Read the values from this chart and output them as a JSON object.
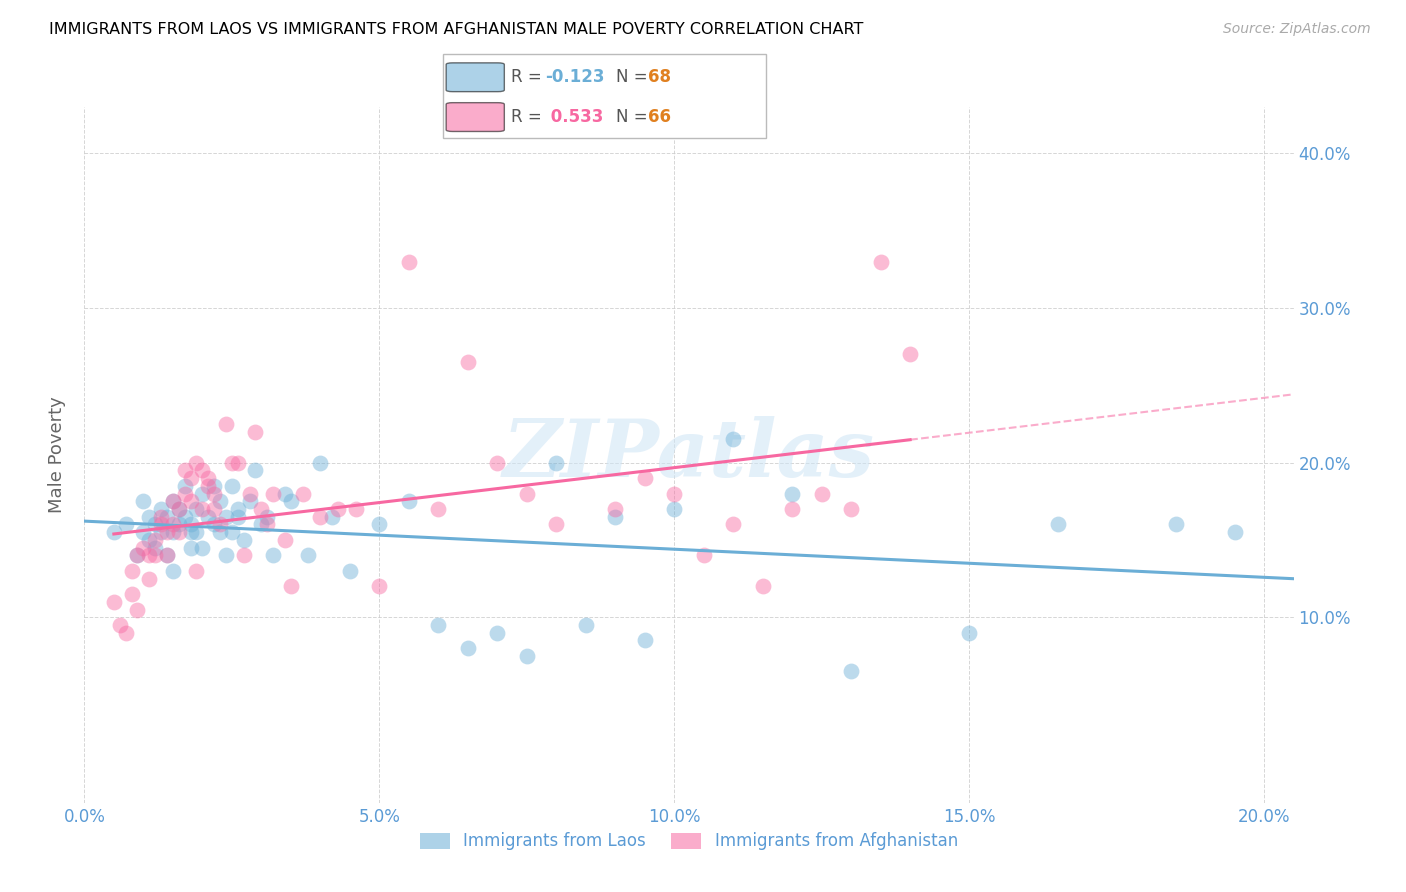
{
  "title": "IMMIGRANTS FROM LAOS VS IMMIGRANTS FROM AFGHANISTAN MALE POVERTY CORRELATION CHART",
  "source": "Source: ZipAtlas.com",
  "ylabel": "Male Poverty",
  "laos_color": "#6baed6",
  "afghanistan_color": "#f768a1",
  "axis_color": "#5b9bd5",
  "grid_color": "#cccccc",
  "watermark": "ZIPatlas",
  "xlim": [
    0.0,
    0.205
  ],
  "ylim": [
    -0.02,
    0.43
  ],
  "xtick_vals": [
    0.0,
    0.05,
    0.1,
    0.15,
    0.2
  ],
  "xtick_labels": [
    "0.0%",
    "5.0%",
    "10.0%",
    "15.0%",
    "20.0%"
  ],
  "ytick_vals": [
    0.1,
    0.2,
    0.3,
    0.4
  ],
  "ytick_labels": [
    "10.0%",
    "20.0%",
    "30.0%",
    "40.0%"
  ],
  "laos_x": [
    0.005,
    0.007,
    0.009,
    0.01,
    0.01,
    0.011,
    0.011,
    0.012,
    0.012,
    0.013,
    0.013,
    0.014,
    0.014,
    0.015,
    0.015,
    0.015,
    0.016,
    0.016,
    0.017,
    0.017,
    0.018,
    0.018,
    0.018,
    0.019,
    0.019,
    0.02,
    0.02,
    0.021,
    0.022,
    0.022,
    0.023,
    0.023,
    0.024,
    0.024,
    0.025,
    0.025,
    0.026,
    0.026,
    0.027,
    0.028,
    0.029,
    0.03,
    0.031,
    0.032,
    0.034,
    0.035,
    0.038,
    0.04,
    0.042,
    0.045,
    0.05,
    0.055,
    0.06,
    0.065,
    0.07,
    0.075,
    0.08,
    0.085,
    0.09,
    0.095,
    0.1,
    0.11,
    0.12,
    0.13,
    0.15,
    0.165,
    0.185,
    0.195
  ],
  "laos_y": [
    0.155,
    0.16,
    0.14,
    0.175,
    0.155,
    0.165,
    0.15,
    0.16,
    0.145,
    0.17,
    0.155,
    0.165,
    0.14,
    0.175,
    0.155,
    0.13,
    0.17,
    0.16,
    0.185,
    0.165,
    0.155,
    0.145,
    0.16,
    0.17,
    0.155,
    0.18,
    0.145,
    0.165,
    0.185,
    0.16,
    0.175,
    0.155,
    0.165,
    0.14,
    0.185,
    0.155,
    0.17,
    0.165,
    0.15,
    0.175,
    0.195,
    0.16,
    0.165,
    0.14,
    0.18,
    0.175,
    0.14,
    0.2,
    0.165,
    0.13,
    0.16,
    0.175,
    0.095,
    0.08,
    0.09,
    0.075,
    0.2,
    0.095,
    0.165,
    0.085,
    0.17,
    0.215,
    0.18,
    0.065,
    0.09,
    0.16,
    0.16,
    0.155
  ],
  "afghanistan_x": [
    0.005,
    0.006,
    0.007,
    0.008,
    0.008,
    0.009,
    0.009,
    0.01,
    0.011,
    0.011,
    0.012,
    0.012,
    0.013,
    0.013,
    0.014,
    0.014,
    0.015,
    0.015,
    0.016,
    0.016,
    0.017,
    0.017,
    0.018,
    0.018,
    0.019,
    0.019,
    0.02,
    0.02,
    0.021,
    0.021,
    0.022,
    0.022,
    0.023,
    0.024,
    0.025,
    0.026,
    0.027,
    0.028,
    0.029,
    0.03,
    0.031,
    0.032,
    0.034,
    0.035,
    0.037,
    0.04,
    0.043,
    0.046,
    0.05,
    0.055,
    0.06,
    0.065,
    0.07,
    0.075,
    0.08,
    0.09,
    0.095,
    0.1,
    0.105,
    0.11,
    0.115,
    0.12,
    0.125,
    0.13,
    0.135,
    0.14
  ],
  "afghanistan_y": [
    0.11,
    0.095,
    0.09,
    0.13,
    0.115,
    0.14,
    0.105,
    0.145,
    0.14,
    0.125,
    0.15,
    0.14,
    0.16,
    0.165,
    0.155,
    0.14,
    0.16,
    0.175,
    0.17,
    0.155,
    0.18,
    0.195,
    0.19,
    0.175,
    0.13,
    0.2,
    0.17,
    0.195,
    0.19,
    0.185,
    0.18,
    0.17,
    0.16,
    0.225,
    0.2,
    0.2,
    0.14,
    0.18,
    0.22,
    0.17,
    0.16,
    0.18,
    0.15,
    0.12,
    0.18,
    0.165,
    0.17,
    0.17,
    0.12,
    0.33,
    0.17,
    0.265,
    0.2,
    0.18,
    0.16,
    0.17,
    0.19,
    0.18,
    0.14,
    0.16,
    0.12,
    0.17,
    0.18,
    0.17,
    0.33,
    0.27
  ]
}
